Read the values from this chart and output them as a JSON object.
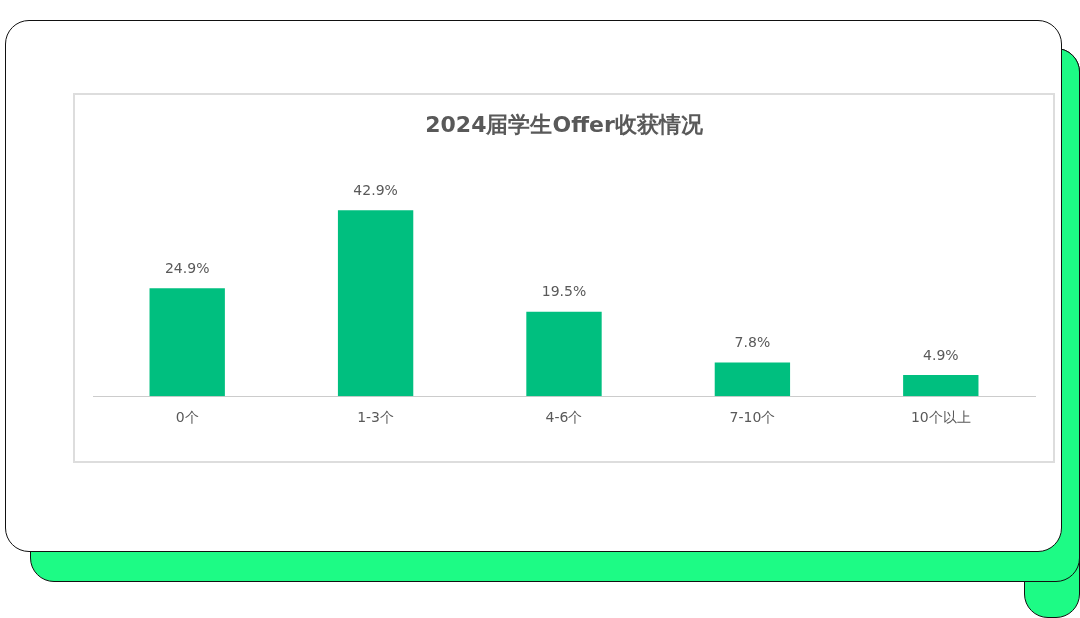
{
  "chart_data": {
    "type": "bar",
    "title": "2024届学生Offer收获情况",
    "categories": [
      "0个",
      "1-3个",
      "4-6个",
      "7-10个",
      "10个以上"
    ],
    "values": [
      24.9,
      42.9,
      19.5,
      7.8,
      4.9
    ],
    "value_labels": [
      "24.9%",
      "42.9%",
      "19.5%",
      "7.8%",
      "4.9%"
    ],
    "color": "#00bf7f",
    "grid": false,
    "legend": false
  }
}
